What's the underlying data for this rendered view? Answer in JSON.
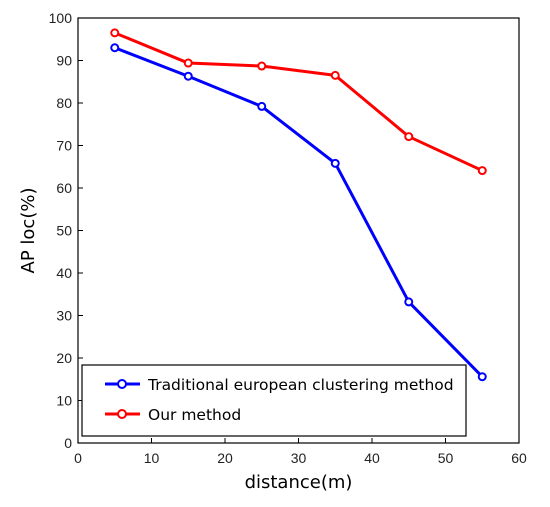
{
  "chart_data": {
    "type": "line",
    "xlabel": "distance(m)",
    "ylabel": "AP loc(%)",
    "xlim": [
      0,
      60
    ],
    "ylim": [
      0,
      100
    ],
    "xticks": [
      0,
      10,
      20,
      30,
      40,
      50,
      60
    ],
    "yticks": [
      0,
      10,
      20,
      30,
      40,
      50,
      60,
      70,
      80,
      90,
      100
    ],
    "grid": false,
    "legend_position": "bottom-left",
    "x": [
      5,
      15,
      25,
      35,
      45,
      55
    ],
    "series": [
      {
        "name": "Traditional european clustering method",
        "color": "#0000ff",
        "values": [
          93,
          86.3,
          79.2,
          65.8,
          33.2,
          15.6
        ]
      },
      {
        "name": "Our method",
        "color": "#ff0000",
        "values": [
          96.5,
          89.4,
          88.7,
          86.5,
          72.1,
          64.1
        ]
      }
    ]
  }
}
